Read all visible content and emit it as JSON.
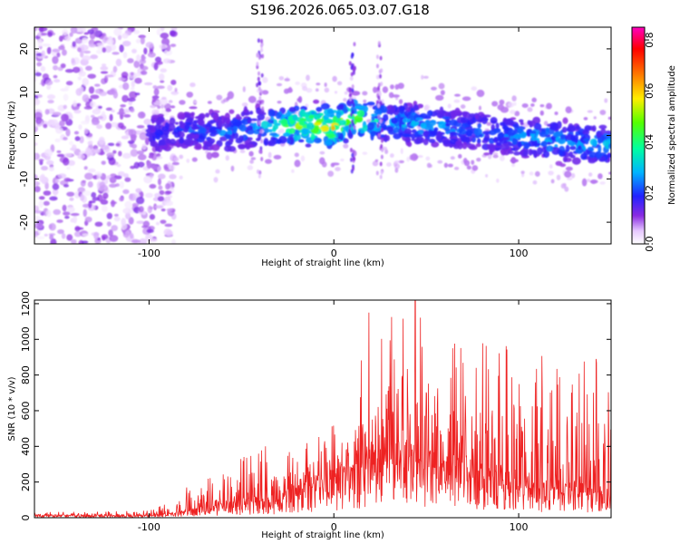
{
  "title": "S196.2026.065.03.07.G18",
  "chart_data": [
    {
      "type": "heatmap",
      "xlabel": "Height of straight line (km)",
      "ylabel": "Frequency (Hz)",
      "xlim": [
        -162,
        150
      ],
      "ylim": [
        -25,
        25
      ],
      "xticks": [
        {
          "value": -100,
          "label": "-100"
        },
        {
          "value": 0,
          "label": "0"
        },
        {
          "value": 100,
          "label": "100"
        }
      ],
      "yticks": [
        {
          "value": 20,
          "label": "20"
        },
        {
          "value": 10,
          "label": "10"
        },
        {
          "value": 0,
          "label": "0"
        },
        {
          "value": -10,
          "label": "-10"
        },
        {
          "value": -20,
          "label": "-20"
        }
      ],
      "colorbar": {
        "label": "Normalized spectral amplitude",
        "range": [
          0,
          0.85
        ],
        "ticks": [
          {
            "value": 0.0,
            "label": "0.0"
          },
          {
            "value": 0.2,
            "label": "0.2"
          },
          {
            "value": 0.4,
            "label": "0.4"
          },
          {
            "value": 0.6,
            "label": "0.6"
          },
          {
            "value": 0.8,
            "label": "0.8"
          }
        ]
      },
      "ridge": {
        "x": [
          -100,
          -80,
          -60,
          -40,
          -20,
          0,
          10,
          30,
          50,
          70,
          90,
          110,
          130,
          150
        ],
        "frequency": [
          0,
          1.5,
          0.5,
          2,
          2.5,
          2,
          4,
          3,
          2.5,
          1.5,
          0,
          -0.5,
          -2,
          -2
        ],
        "amplitude": [
          0.2,
          0.22,
          0.25,
          0.28,
          0.5,
          0.6,
          0.5,
          0.3,
          0.3,
          0.25,
          0.25,
          0.3,
          0.3,
          0.3
        ]
      },
      "noise_region": {
        "x": [
          -162,
          -92
        ],
        "frequency": [
          -25,
          25
        ],
        "amplitude": 0.1
      }
    },
    {
      "type": "line",
      "xlabel": "Height of straight line (km)",
      "ylabel": "SNR (10 * v/v)",
      "xlim": [
        -162,
        150
      ],
      "ylim": [
        0,
        1220
      ],
      "xticks": [
        {
          "value": -100,
          "label": "-100"
        },
        {
          "value": 0,
          "label": "0"
        },
        {
          "value": 100,
          "label": "100"
        }
      ],
      "yticks": [
        {
          "value": 0,
          "label": "0"
        },
        {
          "value": 200,
          "label": "200"
        },
        {
          "value": 400,
          "label": "400"
        },
        {
          "value": 600,
          "label": "600"
        },
        {
          "value": 800,
          "label": "800"
        },
        {
          "value": 1000,
          "label": "1000"
        },
        {
          "value": 1200,
          "label": "1200"
        }
      ],
      "color": "#ee2222",
      "envelope": {
        "x": [
          -162,
          -100,
          -90,
          -80,
          -60,
          -40,
          -30,
          -20,
          -10,
          0,
          10,
          19,
          25,
          40,
          50,
          60,
          80,
          100,
          120,
          140,
          150
        ],
        "base": [
          10,
          10,
          15,
          30,
          60,
          80,
          90,
          120,
          150,
          180,
          200,
          250,
          300,
          280,
          250,
          220,
          200,
          170,
          140,
          120,
          110
        ],
        "peak": [
          30,
          40,
          80,
          170,
          270,
          400,
          320,
          410,
          450,
          560,
          600,
          1150,
          1100,
          1220,
          1120,
          1040,
          1000,
          960,
          920,
          900,
          860
        ]
      },
      "samples": 1500,
      "notable_peaks": [
        {
          "x": 19,
          "y": 1150
        },
        {
          "x": 44,
          "y": 1220
        },
        {
          "x": -37,
          "y": 400
        }
      ]
    }
  ]
}
